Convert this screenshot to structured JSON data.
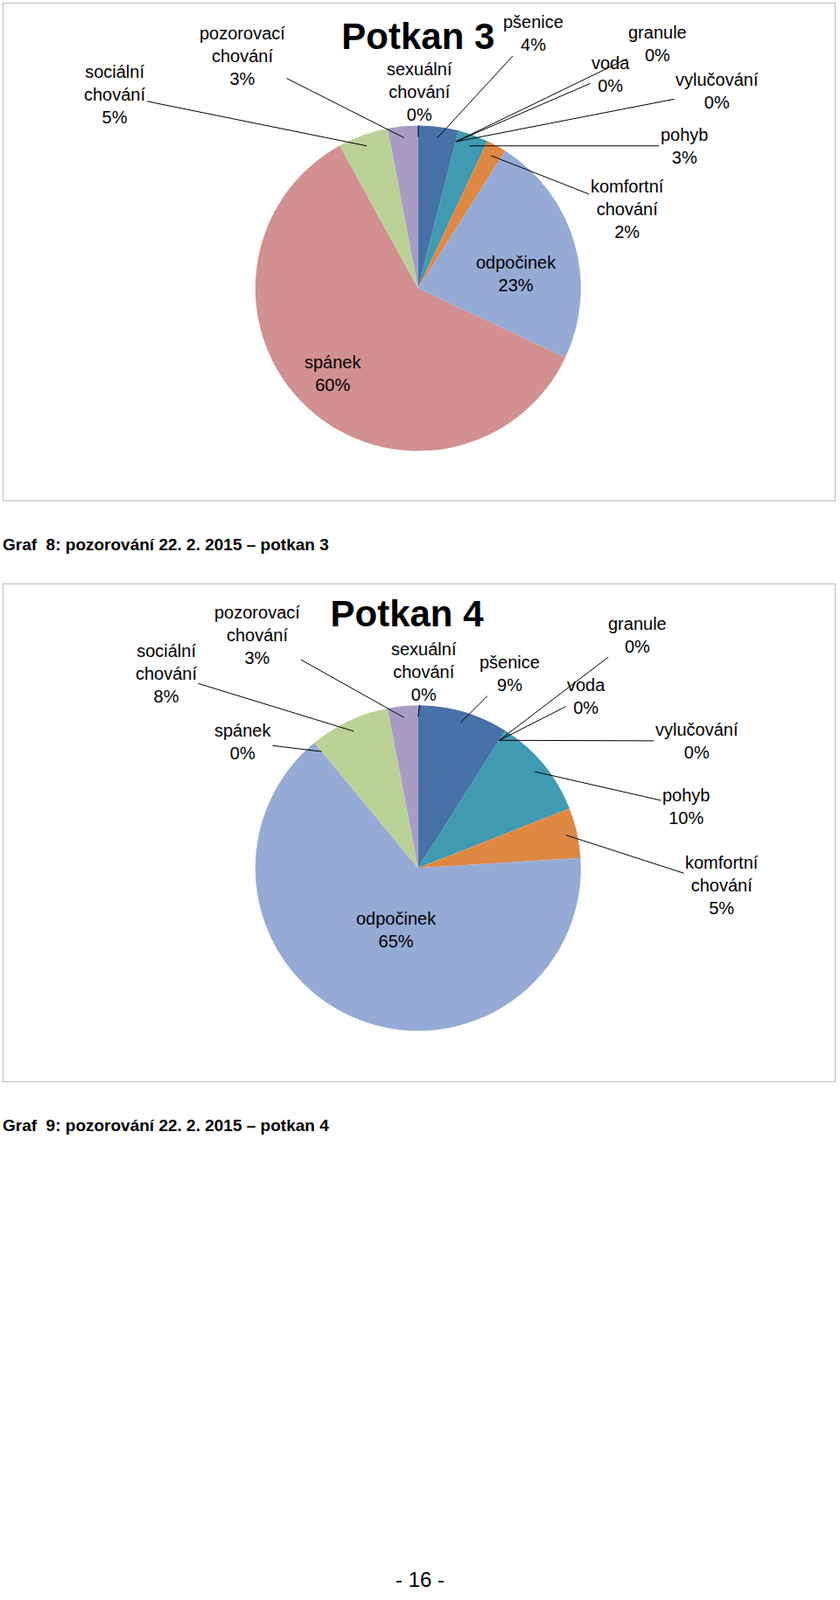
{
  "chart_data": [
    {
      "type": "pie",
      "title": "Potkan 3",
      "caption": "Graf  8: pozorování 22. 2. 2015 – potkan 3",
      "categories": [
        "pšenice",
        "voda",
        "granule",
        "vylučování",
        "pohyb",
        "komfortní chování",
        "odpočinek",
        "spánek",
        "sociální chování",
        "pozorovací chování",
        "sexuální chování"
      ],
      "values": [
        4,
        0,
        0,
        0,
        3,
        2,
        23,
        60,
        5,
        3,
        0
      ],
      "value_labels": [
        "4%",
        "0%",
        "0%",
        "0%",
        "3%",
        "2%",
        "23%",
        "60%",
        "5%",
        "3%",
        "0%"
      ],
      "colors": [
        "#4672a8",
        "#a84b48",
        "#86a44a",
        "#6e5791",
        "#3f9ab2",
        "#de8844",
        "#95abd5",
        "#d29090",
        "#bbd297",
        "#a89cc4",
        "#8dc6d9"
      ],
      "data_labels": true
    },
    {
      "type": "pie",
      "title": "Potkan 4",
      "caption": "Graf  9: pozorování 22. 2. 2015 – potkan 4",
      "categories": [
        "pšenice",
        "voda",
        "granule",
        "vylučování",
        "pohyb",
        "komfortní chování",
        "odpočinek",
        "spánek",
        "sociální chování",
        "pozorovací chování",
        "sexuální chování"
      ],
      "values": [
        9,
        0,
        0,
        0,
        10,
        5,
        65,
        0,
        8,
        3,
        0
      ],
      "value_labels": [
        "9%",
        "0%",
        "0%",
        "0%",
        "10%",
        "5%",
        "65%",
        "0%",
        "8%",
        "3%",
        "0%"
      ],
      "colors": [
        "#4672a8",
        "#a84b48",
        "#86a44a",
        "#6e5791",
        "#3f9ab2",
        "#de8844",
        "#95abd5",
        "#d29090",
        "#bbd297",
        "#a89cc4",
        "#8dc6d9"
      ],
      "data_labels": true
    }
  ],
  "page_number": "- 16 -"
}
